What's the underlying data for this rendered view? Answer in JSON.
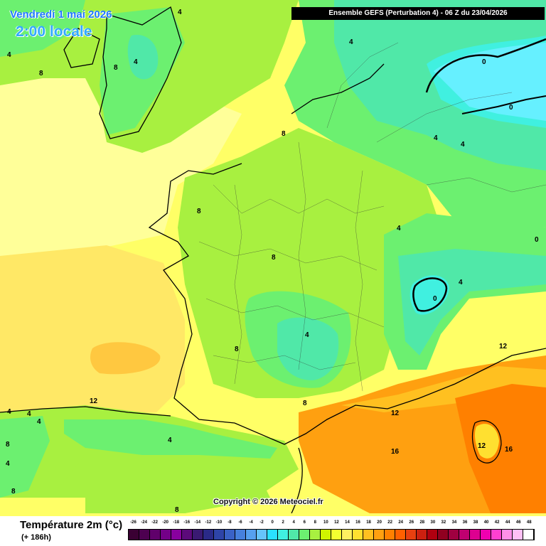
{
  "header": {
    "date_line": "Vendredi 1 mai 2026",
    "time_line": "2:00 locale",
    "run_banner": "Ensemble GEFS  (Perturbation 4)  -  06 Z du 23/04/2026"
  },
  "copyright": "Copyright © 2026 Meteociel.fr",
  "legend": {
    "title": "Température 2m (°c)",
    "subtitle": "(+ 186h)",
    "scale_values": [
      "-26",
      "-24",
      "-22",
      "-20",
      "-18",
      "-16",
      "-14",
      "-12",
      "-10",
      "-8",
      "-6",
      "-4",
      "-2",
      "0",
      "2",
      "4",
      "6",
      "8",
      "10",
      "12",
      "14",
      "16",
      "18",
      "20",
      "22",
      "24",
      "26",
      "28",
      "30",
      "32",
      "34",
      "36",
      "38",
      "40",
      "42",
      "44",
      "46",
      "48"
    ],
    "scale_colors": [
      "#3a0033",
      "#4d0050",
      "#60006b",
      "#740088",
      "#88009f",
      "#5c0a7a",
      "#3a1a72",
      "#2a2a88",
      "#2e44a8",
      "#3a62c6",
      "#4680dc",
      "#56a0ee",
      "#66c4fa",
      "#2ae0ff",
      "#40f0e0",
      "#50e8a8",
      "#6cf070",
      "#a8f040",
      "#d0f400",
      "#f4ff30",
      "#fff060",
      "#ffe030",
      "#ffc020",
      "#ffa010",
      "#ff8000",
      "#ff6000",
      "#e84010",
      "#cc2010",
      "#b00010",
      "#900020",
      "#a00040",
      "#c00070",
      "#dd0090",
      "#f000b0",
      "#ff40d0",
      "#ff90e8",
      "#ffc0f4",
      "#ffffff"
    ]
  },
  "map_labels": [
    "4",
    "8",
    "4",
    "8",
    "4",
    "4",
    "0",
    "0",
    "8",
    "4",
    "4",
    "0",
    "4",
    "8",
    "4",
    "0",
    "4",
    "8",
    "8",
    "12",
    "16",
    "12",
    "12",
    "16",
    "4",
    "4",
    "4",
    "8",
    "4",
    "8",
    "12",
    "8",
    "4",
    "8"
  ]
}
